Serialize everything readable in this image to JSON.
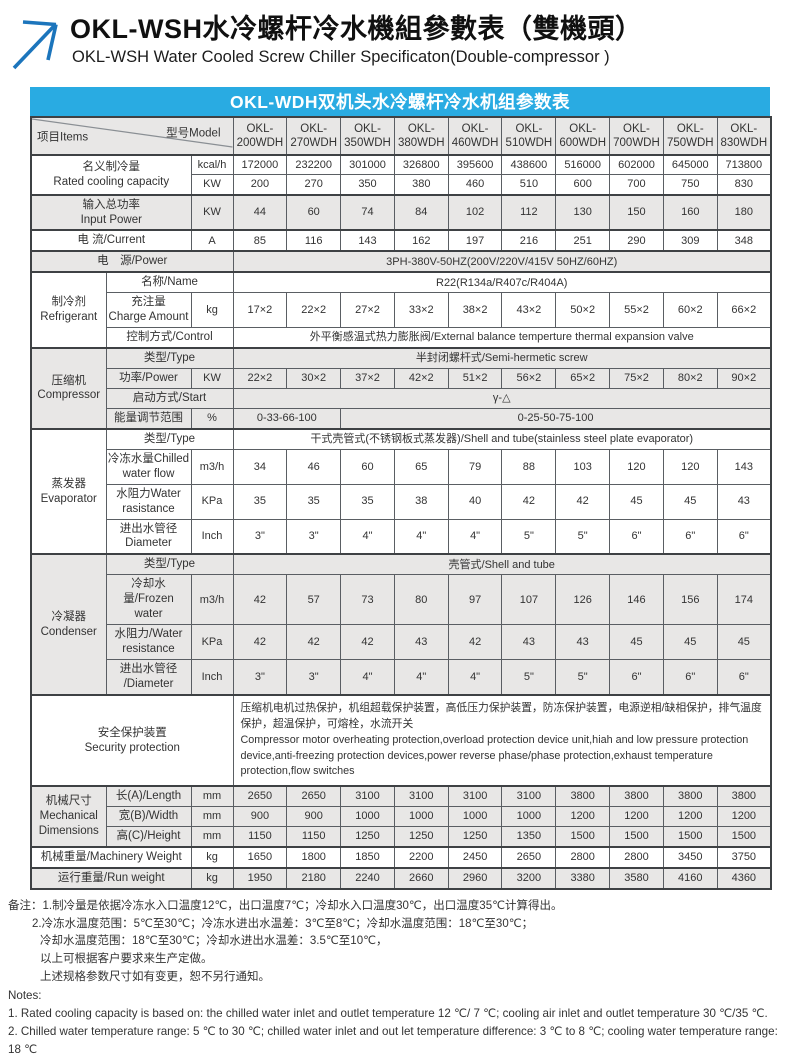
{
  "header": {
    "title_cn": "OKL-WSH水冷螺杆冷水機組參數表（雙機頭）",
    "title_en": "OKL-WSH Water Cooled Screw Chiller Specificaton(Double-compressor )",
    "logo_icon": "arrow-up-right-icon"
  },
  "banner": {
    "text": "OKL-WDH双机头水冷螺杆冷水机组参数表"
  },
  "colors": {
    "banner_bg": "#29abe2",
    "logo_arrow": "#1c75bc",
    "row_shade": "#e8e7e6",
    "border": "#5a5e63"
  },
  "table": {
    "corner": {
      "items": "项目Items",
      "model": "型号Model"
    },
    "model_prefix": "OKL-",
    "models": [
      "200WDH",
      "270WDH",
      "350WDH",
      "380WDH",
      "460WDH",
      "510WDH",
      "600WDH",
      "700WDH",
      "750WDH",
      "830WDH"
    ],
    "rows": [
      {
        "sec": true,
        "shade": false,
        "label": {
          "lines": [
            "名义制冷量",
            "Rated cooling capacity"
          ],
          "cols": 2,
          "rows": 2
        },
        "unit": "kcal/h",
        "values": [
          "172000",
          "232200",
          "301000",
          "326800",
          "395600",
          "438600",
          "516000",
          "602000",
          "645000",
          "713800"
        ]
      },
      {
        "shade": false,
        "unit": "KW",
        "values": [
          "200",
          "270",
          "350",
          "380",
          "460",
          "510",
          "600",
          "700",
          "750",
          "830"
        ]
      },
      {
        "sec": true,
        "shade": true,
        "label": {
          "lines": [
            "输入总功率",
            "Input Power"
          ],
          "cols": 2
        },
        "unit": "KW",
        "values": [
          "44",
          "60",
          "74",
          "84",
          "102",
          "112",
          "130",
          "150",
          "160",
          "180"
        ]
      },
      {
        "sec": true,
        "shade": false,
        "label": {
          "lines": [
            "电 流/Current"
          ],
          "cols": 2
        },
        "unit": "A",
        "values": [
          "85",
          "116",
          "143",
          "162",
          "197",
          "216",
          "251",
          "290",
          "309",
          "348"
        ]
      },
      {
        "sec": true,
        "shade": true,
        "label": {
          "lines": [
            "电　源/Power"
          ],
          "cols": 3
        },
        "cells": [
          {
            "lines": [
              "3PH-380V-50HZ(200V/220V/415V 50HZ/60HZ)"
            ],
            "span": 10
          }
        ]
      },
      {
        "sec": true,
        "shade": false,
        "group": {
          "lines": [
            "制冷剂",
            "Refrigerant"
          ],
          "span": 3
        },
        "label": {
          "lines": [
            "名称/Name"
          ],
          "cols": 2
        },
        "cells": [
          {
            "lines": [
              "R22(R134a/R407c/R404A)"
            ],
            "span": 10
          }
        ]
      },
      {
        "shade": false,
        "label": {
          "lines": [
            "充注量",
            "Charge Amount"
          ],
          "cols": 1
        },
        "unit": "kg",
        "values": [
          "17×2",
          "22×2",
          "27×2",
          "33×2",
          "38×2",
          "43×2",
          "50×2",
          "55×2",
          "60×2",
          "66×2"
        ]
      },
      {
        "shade": false,
        "label": {
          "lines": [
            "控制方式/Control"
          ],
          "cols": 2
        },
        "cells": [
          {
            "lines": [
              "外平衡感温式热力膨胀阀/External balance temperture thermal expansion valve"
            ],
            "span": 10
          }
        ]
      },
      {
        "sec": true,
        "shade": true,
        "group": {
          "lines": [
            "压缩机",
            "Compressor"
          ],
          "span": 4
        },
        "label": {
          "lines": [
            "类型/Type"
          ],
          "cols": 2
        },
        "cells": [
          {
            "lines": [
              "半封闭螺杆式/Semi-hermetic screw"
            ],
            "span": 10
          }
        ]
      },
      {
        "shade": true,
        "label": {
          "lines": [
            "功率/Power"
          ],
          "cols": 1
        },
        "unit": "KW",
        "values": [
          "22×2",
          "30×2",
          "37×2",
          "42×2",
          "51×2",
          "56×2",
          "65×2",
          "75×2",
          "80×2",
          "90×2"
        ]
      },
      {
        "shade": true,
        "label": {
          "lines": [
            "启动方式/Start"
          ],
          "cols": 2
        },
        "cells": [
          {
            "lines": [
              "γ-△"
            ],
            "span": 10
          }
        ]
      },
      {
        "shade": true,
        "label": {
          "lines": [
            "能量调节范围"
          ],
          "cols": 1
        },
        "unit": "%",
        "cells": [
          {
            "lines": [
              "0-33-66-100"
            ],
            "span": 2
          },
          {
            "lines": [
              "0-25-50-75-100"
            ],
            "span": 8
          }
        ]
      },
      {
        "sec": true,
        "shade": false,
        "group": {
          "lines": [
            "蒸发器",
            "Evaporator"
          ],
          "span": 4
        },
        "label": {
          "lines": [
            "类型/Type"
          ],
          "cols": 2
        },
        "cells": [
          {
            "lines": [
              "干式壳管式(不锈钢板式蒸发器)/Shell and tube(stainless steel plate evaporator)"
            ],
            "span": 10
          }
        ]
      },
      {
        "shade": false,
        "label": {
          "lines": [
            "冷冻水量Chilled",
            "water flow"
          ],
          "cols": 1
        },
        "unit": "m3/h",
        "values": [
          "34",
          "46",
          "60",
          "65",
          "79",
          "88",
          "103",
          "120",
          "120",
          "143"
        ]
      },
      {
        "shade": false,
        "label": {
          "lines": [
            "水阻力Water",
            "rasistance"
          ],
          "cols": 1
        },
        "unit": "KPa",
        "values": [
          "35",
          "35",
          "35",
          "38",
          "40",
          "42",
          "42",
          "45",
          "45",
          "43"
        ]
      },
      {
        "shade": false,
        "label": {
          "lines": [
            "进出水管径",
            "Diameter"
          ],
          "cols": 1
        },
        "unit": "Inch",
        "values": [
          "3\"",
          "3\"",
          "4\"",
          "4\"",
          "4\"",
          "5\"",
          "5\"",
          "6\"",
          "6\"",
          "6\""
        ]
      },
      {
        "sec": true,
        "shade": true,
        "group": {
          "lines": [
            "冷凝器",
            "Condenser"
          ],
          "span": 4
        },
        "label": {
          "lines": [
            "类型/Type"
          ],
          "cols": 2
        },
        "cells": [
          {
            "lines": [
              "壳管式/Shell and tube"
            ],
            "span": 10
          }
        ]
      },
      {
        "shade": true,
        "label": {
          "lines": [
            "冷却水量/Frozen",
            "water"
          ],
          "cols": 1
        },
        "unit": "m3/h",
        "values": [
          "42",
          "57",
          "73",
          "80",
          "97",
          "107",
          "126",
          "146",
          "156",
          "174"
        ]
      },
      {
        "shade": true,
        "label": {
          "lines": [
            "水阻力/Water",
            "resistance"
          ],
          "cols": 1
        },
        "unit": "KPa",
        "values": [
          "42",
          "42",
          "42",
          "43",
          "42",
          "43",
          "43",
          "45",
          "45",
          "45"
        ]
      },
      {
        "shade": true,
        "label": {
          "lines": [
            "进出水管径",
            "/Diameter"
          ],
          "cols": 1
        },
        "unit": "Inch",
        "values": [
          "3\"",
          "3\"",
          "4\"",
          "4\"",
          "4\"",
          "5\"",
          "5\"",
          "6\"",
          "6\"",
          "6\""
        ]
      },
      {
        "sec": true,
        "shade": false,
        "label": {
          "lines": [
            "安全保护装置",
            "Security protection"
          ],
          "cols": 3
        },
        "cells": [
          {
            "lines": [
              "压缩机电机过热保护，机组超载保护装置，高低压力保护装置，防冻保护装置，电源逆相/缺相保护，排气温度保护，超温保护，可熔栓，水流开关",
              "Compressor motor overheating protection,overload protection device unit,hiah and low pressure protection device,anti-freezing protection devices,power reverse phase/phase protection,exhaust temperature protection,flow switches"
            ],
            "span": 10,
            "align": "left"
          }
        ]
      },
      {
        "sec": true,
        "shade": true,
        "group": {
          "lines": [
            "机械尺寸",
            "Mechanical",
            "Dimensions"
          ],
          "span": 3
        },
        "label": {
          "lines": [
            "长(A)/Length"
          ],
          "cols": 1
        },
        "unit": "mm",
        "values": [
          "2650",
          "2650",
          "3100",
          "3100",
          "3100",
          "3100",
          "3800",
          "3800",
          "3800",
          "3800"
        ]
      },
      {
        "shade": true,
        "label": {
          "lines": [
            "宽(B)/Width"
          ],
          "cols": 1
        },
        "unit": "mm",
        "values": [
          "900",
          "900",
          "1000",
          "1000",
          "1000",
          "1000",
          "1200",
          "1200",
          "1200",
          "1200"
        ]
      },
      {
        "shade": true,
        "label": {
          "lines": [
            "高(C)/Height"
          ],
          "cols": 1
        },
        "unit": "mm",
        "values": [
          "1150",
          "1150",
          "1250",
          "1250",
          "1250",
          "1350",
          "1500",
          "1500",
          "1500",
          "1500"
        ]
      },
      {
        "sec": true,
        "shade": false,
        "label": {
          "lines": [
            "机械重量/Machinery Weight"
          ],
          "cols": 2
        },
        "unit": "kg",
        "values": [
          "1650",
          "1800",
          "1850",
          "2200",
          "2450",
          "2650",
          "2800",
          "2800",
          "3450",
          "3750"
        ]
      },
      {
        "sec": true,
        "shade": true,
        "label": {
          "lines": [
            "运行重量/Run weight"
          ],
          "cols": 2
        },
        "unit": "kg",
        "values": [
          "1950",
          "2180",
          "2240",
          "2660",
          "2960",
          "3200",
          "3380",
          "3580",
          "4160",
          "4360"
        ]
      }
    ]
  },
  "notes": {
    "cn": [
      "备注：1.制冷量是依据冷冻水入口温度12℃，出口温度7℃；冷却水入口温度30℃，出口温度35℃计算得出。",
      "2.冷冻水温度范围：5℃至30℃；冷冻水进出水温差：3℃至8℃；冷却水温度范围：18℃至30℃；",
      "冷却水温度范围：18℃至30℃；冷却水进出水温差：3.5℃至10℃，",
      "以上可根据客户要求来生产定做。",
      "上述规格参数尺寸如有变更，恕不另行通知。"
    ],
    "en": [
      "Notes:",
      "1. Rated cooling capacity is based on: the chilled water inlet and outlet temperature 12 ℃/ 7 ℃; cooling air inlet and outlet temperature 30 ℃/35 ℃.",
      "2. Chilled water temperature range: 5 ℃ to 30 ℃; chilled water inlet and out let temperature difference: 3 ℃ to 8 ℃; cooling water temperature range: 18 ℃"
    ]
  }
}
